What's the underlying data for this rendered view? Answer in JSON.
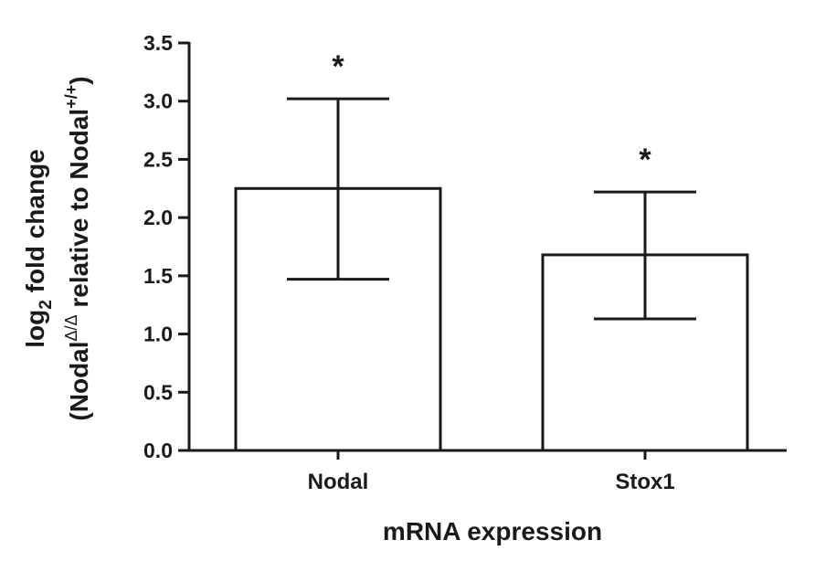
{
  "chart_data": {
    "type": "bar",
    "categories": [
      "Nodal",
      "Stox1"
    ],
    "values": [
      2.25,
      1.68
    ],
    "error_upper": [
      3.02,
      2.22
    ],
    "error_lower": [
      1.47,
      1.13
    ],
    "annotations": [
      "*",
      "*"
    ],
    "xlabel": "mRNA expression",
    "ylabel": {
      "line1": {
        "prefix": "log",
        "subscript": "2",
        "suffix": " fold change"
      },
      "line2": {
        "open": "(Nodal",
        "sup1": "Δ/Δ",
        "middle": " relative to Nodal",
        "sup2": "+/+",
        "close": ")"
      }
    },
    "ylim": [
      0,
      3.5
    ],
    "yticks": [
      "0.0",
      "0.5",
      "1.0",
      "1.5",
      "2.0",
      "2.5",
      "3.0",
      "3.5"
    ],
    "grid": false,
    "bar_fill": "#ffffff",
    "line_color": "#1a1a1a"
  }
}
